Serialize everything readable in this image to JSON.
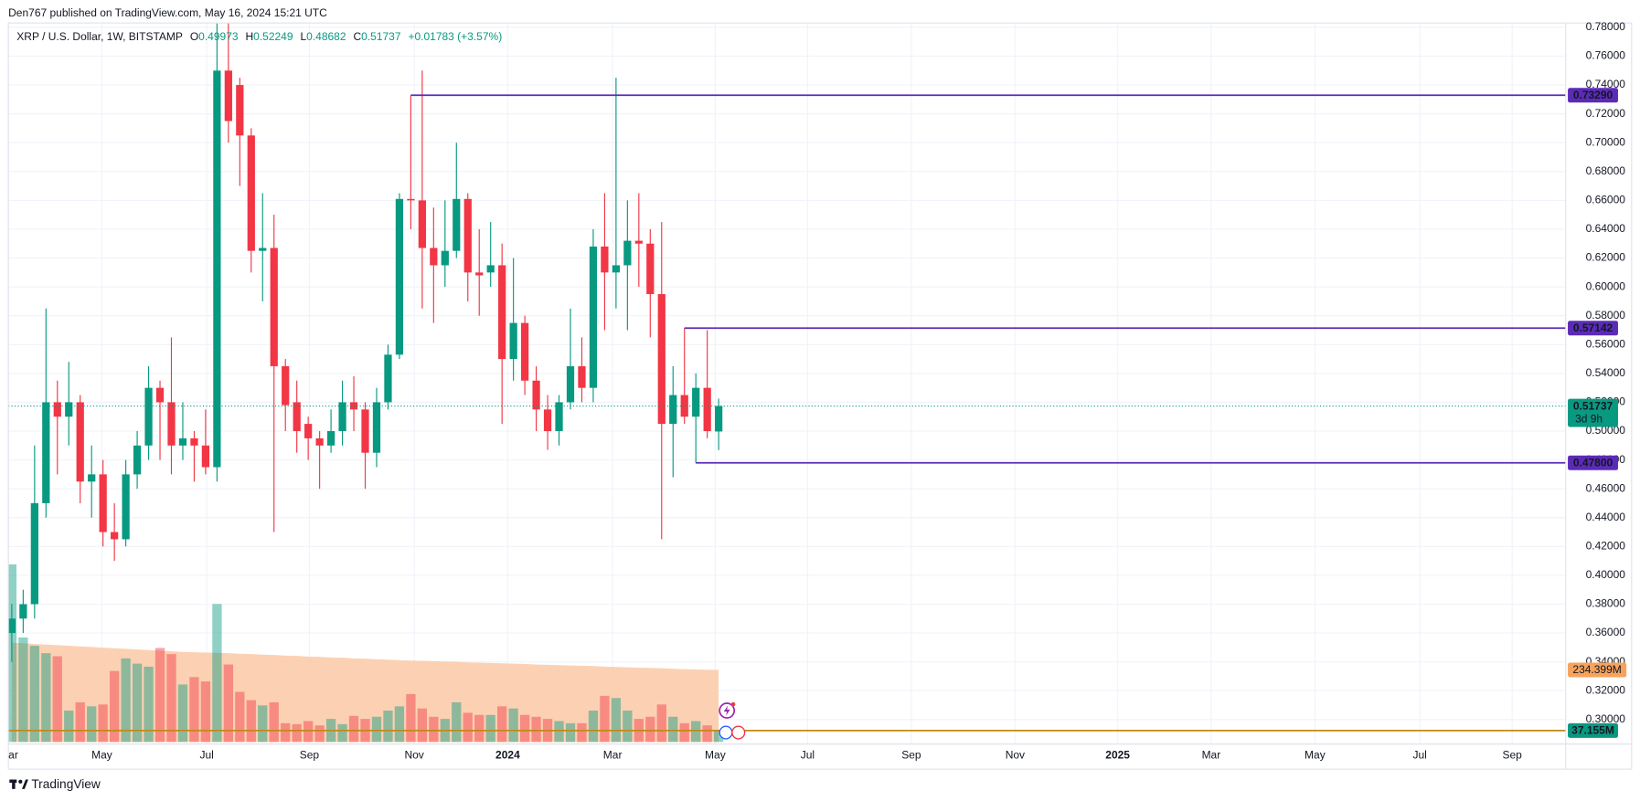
{
  "header": {
    "publisher": "Den767 published on TradingView.com, May 16, 2024 15:21 UTC"
  },
  "footer": {
    "brand": "TradingView"
  },
  "chart_data": {
    "type": "candlestick",
    "legend": {
      "symbol": "XRP / U.S. Dollar, 1W, BITSTAMP",
      "o": "O",
      "h": "H",
      "l": "L",
      "c": "C",
      "change": "+0.01783 (+3.57%)"
    },
    "up_color": "#089981",
    "down_color": "#f23645",
    "open": [
      0.36,
      0.37,
      0.38,
      0.45,
      0.52,
      0.51,
      0.52,
      0.465,
      0.47,
      0.43,
      0.425,
      0.47,
      0.49,
      0.53,
      0.52,
      0.49,
      0.495,
      0.49,
      0.475,
      0.75,
      0.74,
      0.705,
      0.625,
      0.627,
      0.545,
      0.52,
      0.505,
      0.495,
      0.49,
      0.5,
      0.52,
      0.515,
      0.485,
      0.52,
      0.553,
      0.661,
      0.66,
      0.627,
      0.615,
      0.625,
      0.661,
      0.61,
      0.61,
      0.615,
      0.55,
      0.575,
      0.535,
      0.515,
      0.5,
      0.52,
      0.545,
      0.53,
      0.628,
      0.61,
      0.615,
      0.632,
      0.63,
      0.595,
      0.505,
      0.525,
      0.51,
      0.53,
      0.49973
    ],
    "high": [
      0.38,
      0.39,
      0.49,
      0.585,
      0.535,
      0.548,
      0.525,
      0.49,
      0.48,
      0.45,
      0.48,
      0.5,
      0.545,
      0.535,
      0.565,
      0.52,
      0.5,
      0.515,
      0.79,
      0.8,
      0.745,
      0.71,
      0.665,
      0.65,
      0.55,
      0.535,
      0.51,
      0.5,
      0.515,
      0.535,
      0.538,
      0.52,
      0.53,
      0.56,
      0.665,
      0.7329,
      0.75,
      0.655,
      0.66,
      0.7,
      0.665,
      0.64,
      0.645,
      0.63,
      0.62,
      0.58,
      0.545,
      0.525,
      0.525,
      0.585,
      0.565,
      0.64,
      0.665,
      0.745,
      0.66,
      0.665,
      0.64,
      0.645,
      0.545,
      0.57142,
      0.54,
      0.57,
      0.52249
    ],
    "low": [
      0.34,
      0.36,
      0.37,
      0.44,
      0.47,
      0.49,
      0.45,
      0.44,
      0.42,
      0.41,
      0.42,
      0.46,
      0.48,
      0.48,
      0.47,
      0.48,
      0.465,
      0.47,
      0.465,
      0.7,
      0.67,
      0.61,
      0.59,
      0.43,
      0.5,
      0.485,
      0.48,
      0.46,
      0.485,
      0.49,
      0.5,
      0.46,
      0.475,
      0.515,
      0.55,
      0.64,
      0.585,
      0.575,
      0.6,
      0.62,
      0.59,
      0.58,
      0.6,
      0.505,
      0.535,
      0.525,
      0.5,
      0.487,
      0.49,
      0.515,
      0.52,
      0.52,
      0.57,
      0.585,
      0.57,
      0.6,
      0.565,
      0.425,
      0.468,
      0.505,
      0.478,
      0.495,
      0.48682
    ],
    "close": [
      0.37,
      0.38,
      0.45,
      0.52,
      0.51,
      0.52,
      0.465,
      0.47,
      0.43,
      0.425,
      0.47,
      0.49,
      0.53,
      0.52,
      0.49,
      0.495,
      0.49,
      0.475,
      0.75,
      0.715,
      0.705,
      0.625,
      0.627,
      0.545,
      0.518,
      0.5,
      0.495,
      0.49,
      0.5,
      0.52,
      0.515,
      0.485,
      0.52,
      0.553,
      0.661,
      0.66,
      0.627,
      0.615,
      0.625,
      0.661,
      0.61,
      0.608,
      0.615,
      0.55,
      0.575,
      0.535,
      0.515,
      0.5,
      0.52,
      0.545,
      0.53,
      0.628,
      0.61,
      0.615,
      0.632,
      0.63,
      0.595,
      0.505,
      0.525,
      0.51,
      0.53,
      0.5,
      0.51737
    ],
    "countdown": "3d 9h",
    "volume": {
      "values": [
        578,
        340,
        313,
        289,
        279,
        102,
        129,
        116,
        122,
        231,
        272,
        255,
        245,
        306,
        286,
        187,
        211,
        197,
        449,
        252,
        163,
        136,
        119,
        129,
        61,
        58,
        68,
        54,
        75,
        58,
        85,
        75,
        82,
        102,
        116,
        156,
        109,
        82,
        75,
        129,
        95,
        88,
        88,
        116,
        109,
        88,
        82,
        75,
        68,
        61,
        61,
        102,
        150,
        143,
        102,
        75,
        82,
        122,
        82,
        61,
        68,
        54,
        37.155
      ],
      "last_label": "37.155M",
      "ma": [
        323,
        321,
        319,
        317,
        315,
        313,
        311,
        309,
        307,
        305,
        303,
        301,
        299,
        297,
        295,
        293,
        292,
        291,
        290,
        289,
        287,
        286,
        284,
        283,
        281,
        280,
        278,
        277,
        275,
        274,
        272,
        271,
        269,
        268,
        266,
        265,
        264,
        263,
        262,
        261,
        259,
        258,
        257,
        256,
        255,
        254,
        252,
        251,
        250,
        249,
        248,
        247,
        245,
        244,
        243,
        242,
        241,
        240,
        238,
        237,
        236,
        235,
        234.399
      ],
      "ma_label": "234.399M",
      "ma_color": "#fcc9a6",
      "vlim": [
        0,
        2340
      ]
    },
    "levels": [
      {
        "value": 0.7329,
        "label": "0.73290"
      },
      {
        "value": 0.57142,
        "label": "0.57142"
      },
      {
        "value": 0.478,
        "label": "0.47800"
      }
    ],
    "level_color": "#5b2bb8",
    "xlim": [
      -0.3,
      136.3
    ],
    "xticks": [
      {
        "value": -0.3,
        "label": "ar"
      },
      {
        "value": 7.9,
        "label": "May"
      },
      {
        "value": 17.1,
        "label": "Jul"
      },
      {
        "value": 26.1,
        "label": "Sep"
      },
      {
        "value": 35.3,
        "label": "Nov"
      },
      {
        "value": 43.5,
        "label": "2024"
      },
      {
        "value": 52.7,
        "label": "Mar"
      },
      {
        "value": 61.7,
        "label": "May"
      },
      {
        "value": 69.8,
        "label": "Jul"
      },
      {
        "value": 78.9,
        "label": "Sep"
      },
      {
        "value": 88,
        "label": "Nov"
      },
      {
        "value": 97,
        "label": "2025"
      },
      {
        "value": 105.2,
        "label": "Mar"
      },
      {
        "value": 114.3,
        "label": "May"
      },
      {
        "value": 123.5,
        "label": "Jul"
      },
      {
        "value": 131.6,
        "label": "Sep"
      }
    ],
    "ylim": [
      0.283,
      0.783
    ],
    "yticks": [
      {
        "value": 0.3,
        "label": "0.30000"
      },
      {
        "value": 0.32,
        "label": "0.32000"
      },
      {
        "value": 0.34,
        "label": "0.34000"
      },
      {
        "value": 0.36,
        "label": "0.36000"
      },
      {
        "value": 0.38,
        "label": "0.38000"
      },
      {
        "value": 0.4,
        "label": "0.40000"
      },
      {
        "value": 0.42,
        "label": "0.42000"
      },
      {
        "value": 0.44,
        "label": "0.44000"
      },
      {
        "value": 0.46,
        "label": "0.46000"
      },
      {
        "value": 0.48,
        "label": "0.48000"
      },
      {
        "value": 0.5,
        "label": "0.50000"
      },
      {
        "value": 0.52,
        "label": "0.52000"
      },
      {
        "value": 0.54,
        "label": "0.54000"
      },
      {
        "value": 0.56,
        "label": "0.56000"
      },
      {
        "value": 0.58,
        "label": "0.58000"
      },
      {
        "value": 0.6,
        "label": "0.60000"
      },
      {
        "value": 0.62,
        "label": "0.62000"
      },
      {
        "value": 0.64,
        "label": "0.64000"
      },
      {
        "value": 0.66,
        "label": "0.66000"
      },
      {
        "value": 0.68,
        "label": "0.68000"
      },
      {
        "value": 0.7,
        "label": "0.70000"
      },
      {
        "value": 0.72,
        "label": "0.72000"
      },
      {
        "value": 0.74,
        "label": "0.74000"
      },
      {
        "value": 0.76,
        "label": "0.76000"
      },
      {
        "value": 0.78,
        "label": "0.78000"
      }
    ],
    "grid": true
  }
}
